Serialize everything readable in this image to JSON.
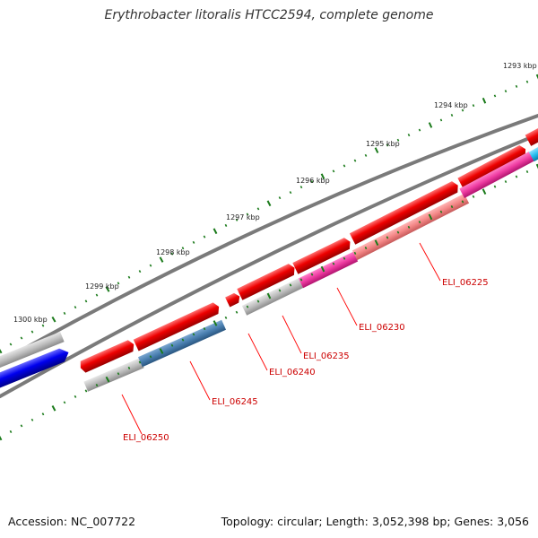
{
  "title": "Erythrobacter litoralis HTCC2594, complete genome",
  "accession_line": "Accession: NC_007722",
  "summary_line": "Topology: circular; Length: 3,052,398 bp; Genes: 3,056",
  "tick_labels": [
    "1293 kbp",
    "1294 kbp",
    "1295 kbp",
    "1296 kbp",
    "1297 kbp",
    "1298 kbp",
    "1299 kbp",
    "1300 kbp"
  ],
  "gene_labels": [
    "ELI_06225",
    "ELI_06230",
    "ELI_06235",
    "ELI_06240",
    "ELI_06245",
    "ELI_06250"
  ],
  "colors": {
    "backbone": "#7a7a7a",
    "forward_feature": "#ee0000",
    "reverse_feature": "#0000ee",
    "cds_pink": "#ee3aa0",
    "cds_salmon": "#f38585",
    "cds_steelblue": "#4a7fb0",
    "gene_gray": "#bdbdbd",
    "cyan_feature": "#22bbee",
    "tick": "#1a7a1a",
    "label_red": "#cc0000"
  }
}
